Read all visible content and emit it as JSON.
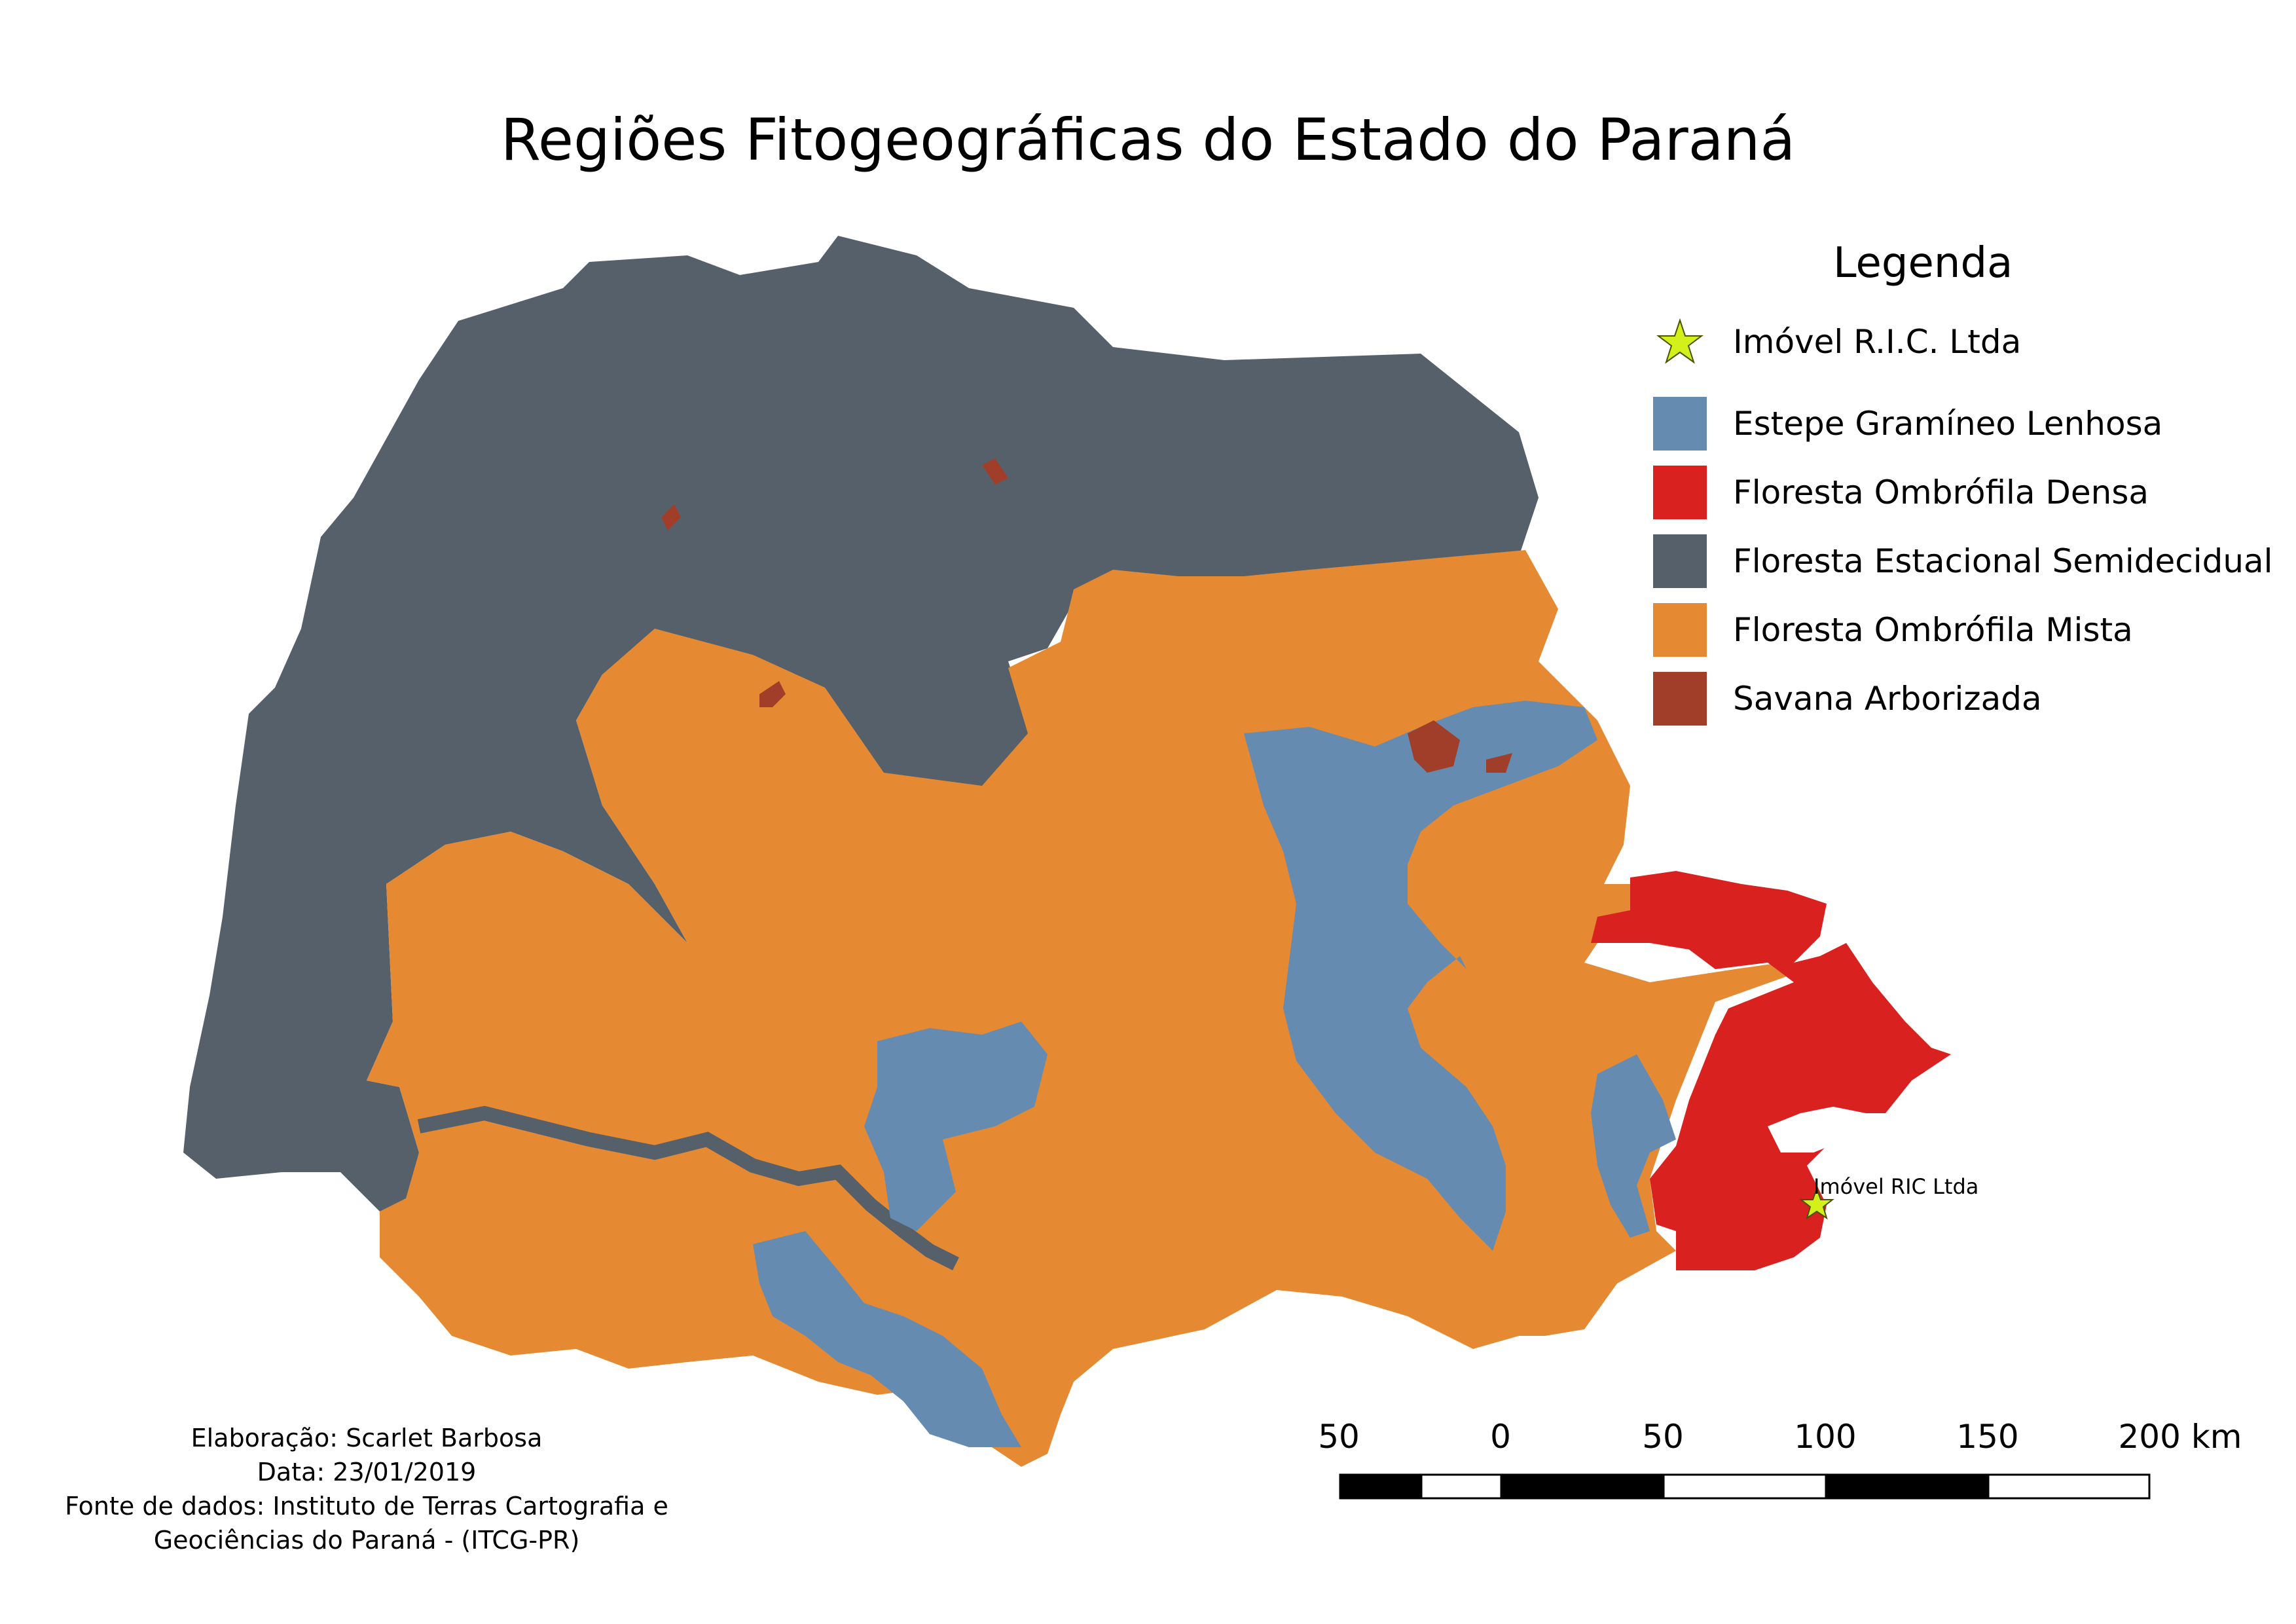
{
  "title": "Regiões Fitogeográficas do Estado do Paraná",
  "legend": {
    "title": "Legenda",
    "point": {
      "label": "Imóvel R.I.C. Ltda",
      "color": "#d4f01a",
      "icon": "star-icon"
    },
    "items": [
      {
        "label": "Estepe Gramíneo Lenhosa",
        "color": "#658bb0"
      },
      {
        "label": "Floresta Ombrófila Densa",
        "color": "#d9221f"
      },
      {
        "label": "Floresta Estacional Semidecidual",
        "color": "#56606b"
      },
      {
        "label": "Floresta Ombrófila Mista",
        "color": "#e58a33"
      },
      {
        "label": "Savana Arborizada",
        "color": "#a03e2a"
      }
    ]
  },
  "map_point_label": "Imóvel RIC Ltda",
  "scale": {
    "labels": [
      "50",
      "0",
      "50",
      "100",
      "150",
      "200 km"
    ]
  },
  "credits": {
    "line1": "Elaboração: Scarlet Barbosa",
    "line2": "Data: 23/01/2019",
    "line3": "Fonte de dados: Instituto de Terras Cartografia e",
    "line4": "Geociências do Paraná - (ITCG-PR)"
  }
}
